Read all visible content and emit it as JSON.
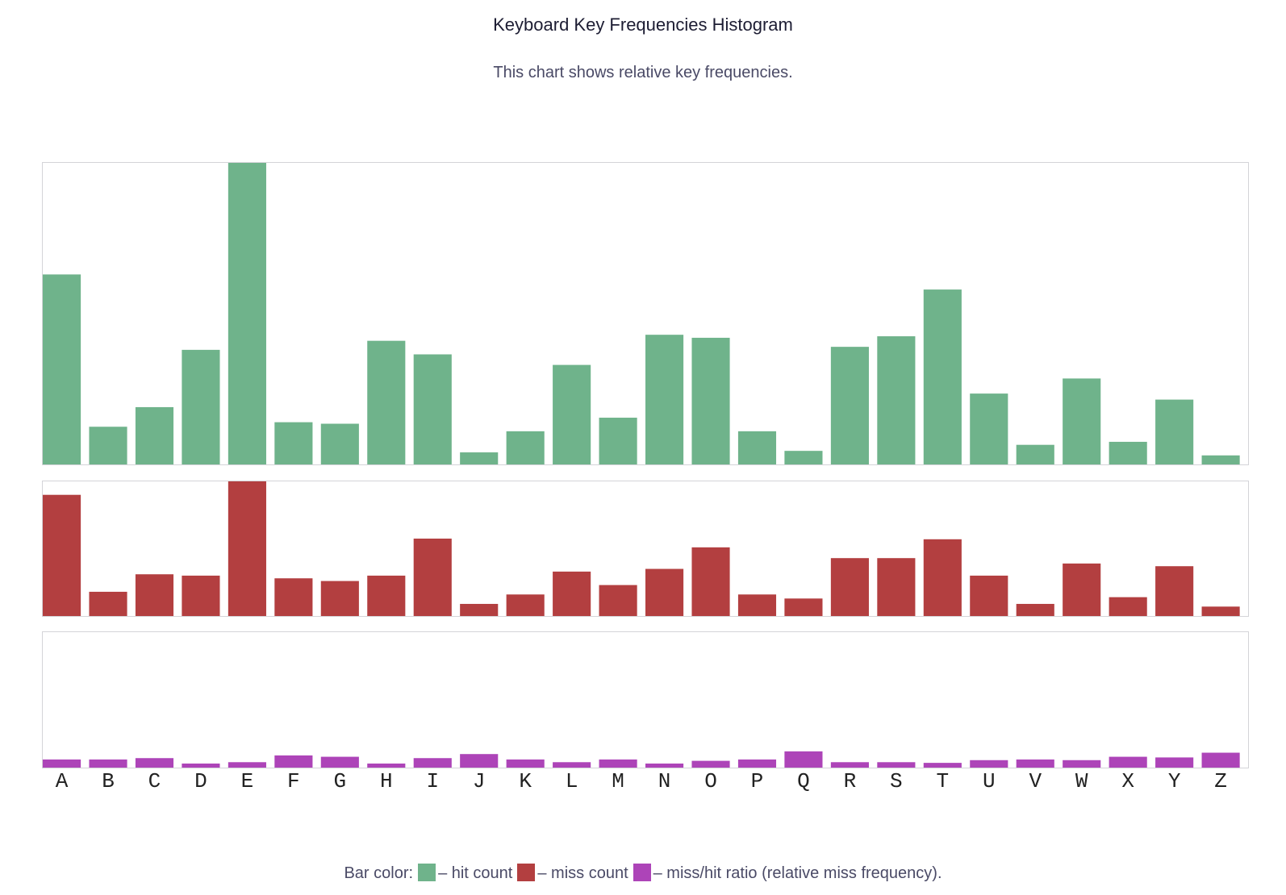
{
  "page": {
    "title": "Keyboard Key Frequencies Histogram",
    "subtitle": "This chart shows relative key frequencies."
  },
  "legend": {
    "prefix": "Bar color:",
    "items": [
      {
        "label": "– hit count",
        "color": "#6fb38b"
      },
      {
        "label": "– miss count",
        "color": "#b33f40"
      },
      {
        "label": "– miss/hit ratio (relative miss frequency).",
        "color": "#ad44b8"
      }
    ]
  },
  "chart_data": {
    "type": "bar",
    "categories": [
      "A",
      "B",
      "C",
      "D",
      "E",
      "F",
      "G",
      "H",
      "I",
      "J",
      "K",
      "L",
      "M",
      "N",
      "O",
      "P",
      "Q",
      "R",
      "S",
      "T",
      "U",
      "V",
      "W",
      "X",
      "Y",
      "Z"
    ],
    "grid": false,
    "series": [
      {
        "name": "hit count",
        "color": "#6fb38b",
        "values": [
          0.63,
          0.125,
          0.19,
          0.38,
          1.0,
          0.14,
          0.135,
          0.41,
          0.365,
          0.04,
          0.11,
          0.33,
          0.155,
          0.43,
          0.42,
          0.11,
          0.045,
          0.39,
          0.425,
          0.58,
          0.235,
          0.065,
          0.285,
          0.075,
          0.215,
          0.03
        ]
      },
      {
        "name": "miss count",
        "color": "#b33f40",
        "values": [
          0.9,
          0.18,
          0.31,
          0.3,
          1.0,
          0.28,
          0.26,
          0.3,
          0.575,
          0.09,
          0.16,
          0.33,
          0.23,
          0.35,
          0.51,
          0.16,
          0.13,
          0.43,
          0.43,
          0.57,
          0.3,
          0.09,
          0.39,
          0.14,
          0.37,
          0.07
        ]
      },
      {
        "name": "miss/hit ratio",
        "color": "#ad44b8",
        "values": [
          0.06,
          0.06,
          0.07,
          0.03,
          0.04,
          0.09,
          0.08,
          0.03,
          0.07,
          0.1,
          0.06,
          0.04,
          0.06,
          0.03,
          0.05,
          0.06,
          0.12,
          0.04,
          0.04,
          0.035,
          0.055,
          0.06,
          0.055,
          0.08,
          0.075,
          0.11
        ]
      }
    ]
  }
}
